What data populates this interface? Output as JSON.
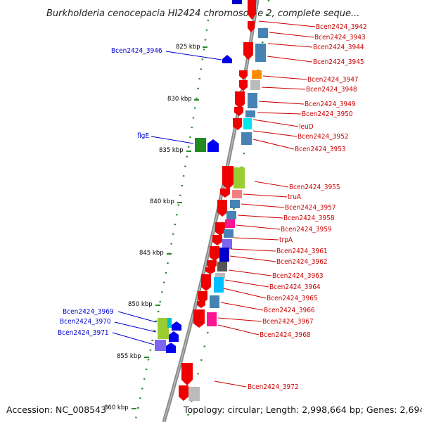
{
  "title": "Burkholderia cenocepacia HI2424 chromosome 2, complete seque...",
  "accession": "Accession: NC_008543",
  "topology": "Topology: circular; Length: 2,998,664 bp; Genes: 2,694",
  "colors": {
    "forward_label": "#cc0000",
    "reverse_label": "#0000cc",
    "axis_tick": "#2a8a2a",
    "backbone": "#888888"
  },
  "ticks": [
    "825 kbp",
    "830 kbp",
    "835 kbp",
    "840 kbp",
    "845 kbp",
    "850 kbp",
    "855 kbp",
    "860 kbp"
  ],
  "right_labels": [
    "Bcen2424_3942",
    "Bcen2424_3943",
    "Bcen2424_3944",
    "Bcen2424_3945",
    "Bcen2424_3947",
    "Bcen2424_3948",
    "Bcen2424_3949",
    "Bcen2424_3950",
    "leuD",
    "Bcen2424_3952",
    "Bcen2424_3953",
    "Bcen2424_3955",
    "truA",
    "Bcen2424_3957",
    "Bcen2424_3958",
    "Bcen2424_3959",
    "trpA",
    "Bcen2424_3961",
    "Bcen2424_3962",
    "Bcen2424_3963",
    "Bcen2424_3964",
    "Bcen2424_3965",
    "Bcen2424_3966",
    "Bcen2424_3967",
    "Bcen2424_3968",
    "Bcen2424_3972"
  ],
  "left_labels": [
    "Bcen2424_3946",
    "flgE",
    "Bcen2424_3969",
    "Bcen2424_3970",
    "Bcen2424_3971"
  ]
}
